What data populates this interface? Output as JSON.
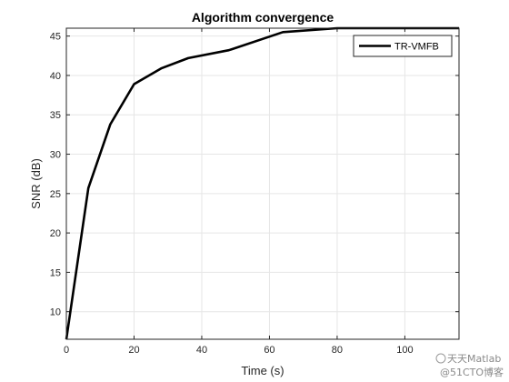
{
  "chart_data": {
    "type": "line",
    "title": "Algorithm convergence",
    "xlabel": "Time (s)",
    "ylabel": "SNR (dB)",
    "xlim": [
      0,
      116
    ],
    "ylim": [
      6.5,
      46
    ],
    "xticks": [
      0,
      20,
      40,
      60,
      80,
      100
    ],
    "xtick_labels": [
      "0",
      "20",
      "40",
      "60",
      "80",
      "100"
    ],
    "yticks": [
      10,
      15,
      20,
      25,
      30,
      35,
      40,
      45
    ],
    "ytick_labels": [
      "10",
      "15",
      "20",
      "25",
      "30",
      "35",
      "40",
      "45"
    ],
    "grid": true,
    "legend_position": "top-right",
    "series": [
      {
        "name": "TR-VMFB",
        "color": "#000000",
        "x": [
          0,
          6.5,
          13,
          20,
          28,
          36,
          48,
          64,
          80,
          90,
          116
        ],
        "y": [
          6.5,
          25.7,
          33.8,
          38.9,
          40.9,
          42.2,
          43.2,
          45.5,
          46.0,
          46.0,
          46.0
        ]
      }
    ]
  },
  "watermark": {
    "text": "天天Matlab",
    "subtext": "@51CTO博客"
  }
}
